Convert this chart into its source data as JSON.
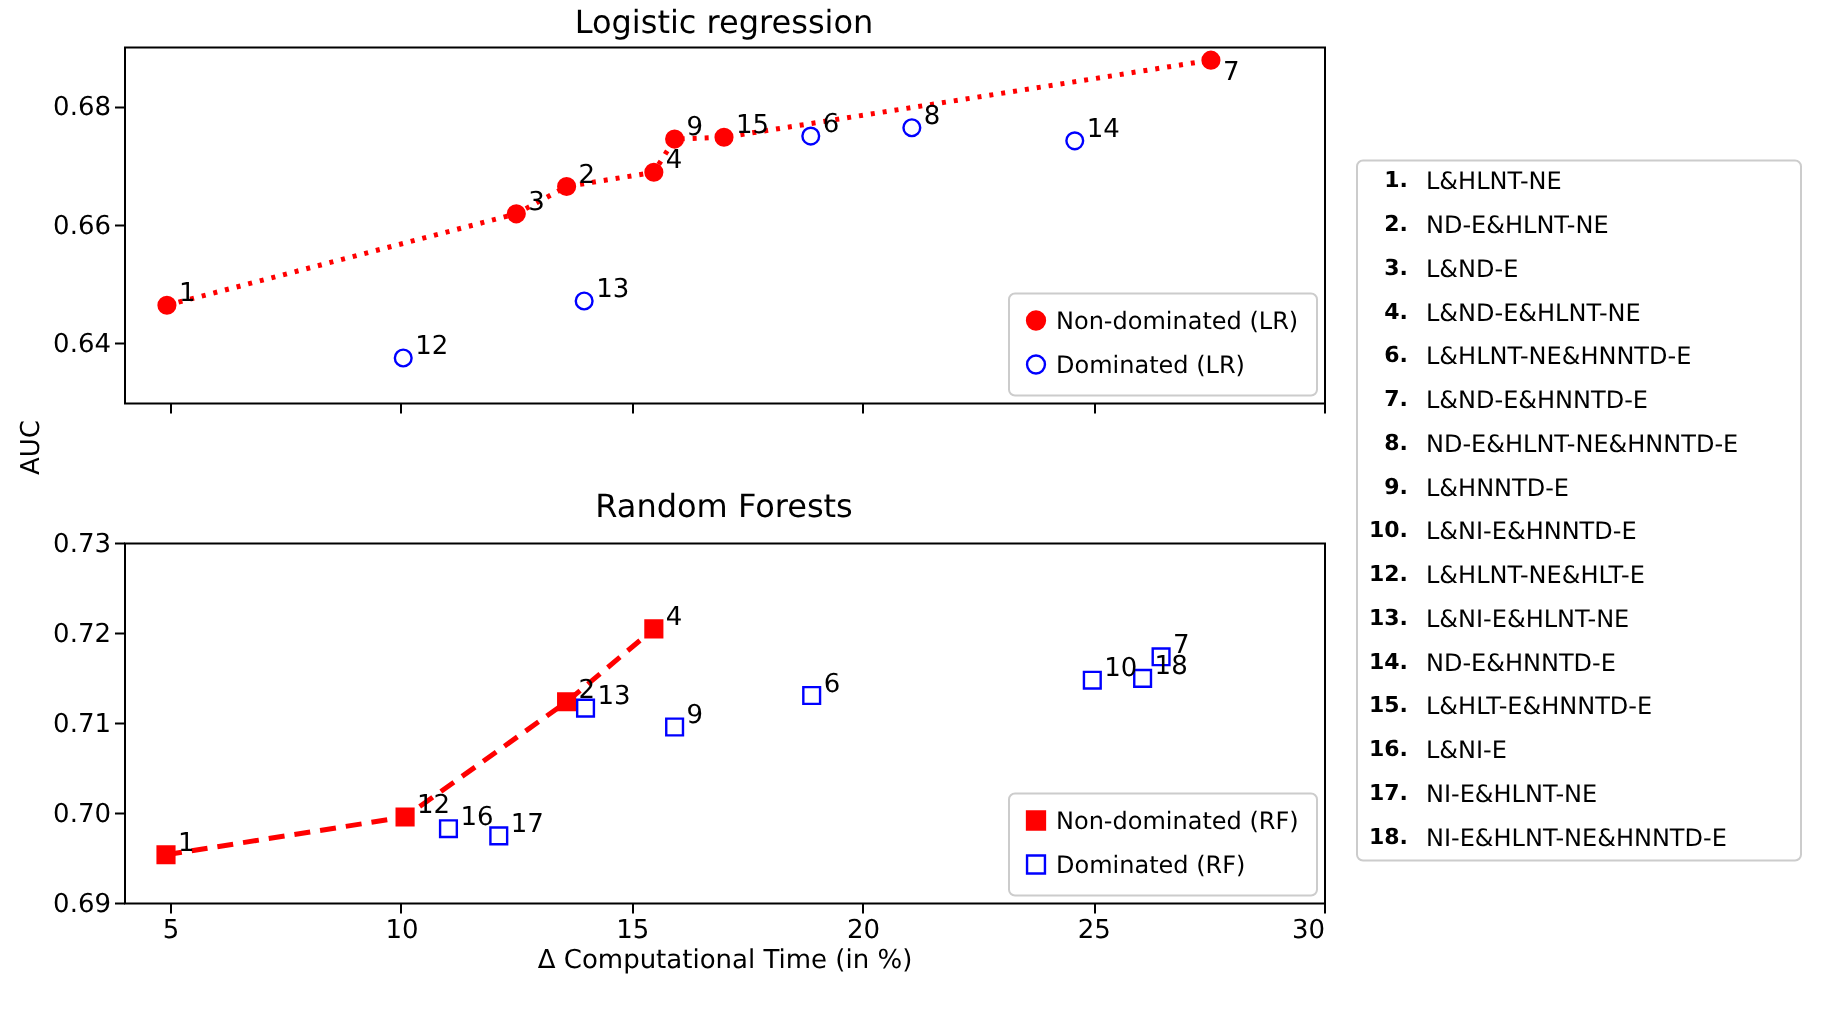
{
  "chart_data": [
    {
      "type": "scatter",
      "title": "Logistic regression",
      "ylabel": "AUC",
      "xlim": [
        4,
        30
      ],
      "xticks": [
        5,
        10,
        15,
        20,
        25,
        30
      ],
      "ylim": [
        0.63,
        0.69
      ],
      "yticks": [
        0.64,
        0.66,
        0.68
      ],
      "tick_labels": "y",
      "legend": "bottom right",
      "series": [
        {
          "name": "Non-dominated (LR)",
          "type": "line",
          "line_style": "dotted",
          "marker": "circle",
          "color": "#ff0000",
          "x": [
            4.93,
            12.5,
            13.59,
            15.48,
            15.93,
            17.0,
            27.55
          ],
          "values": [
            0.6464,
            0.6618,
            0.6664,
            0.6688,
            0.6744,
            0.6747,
            0.6877
          ]
        },
        {
          "name": "Dominated (LR)",
          "type": "scatter",
          "marker": "circle",
          "color": "#0000ff",
          "x": [
            10.05,
            13.97,
            18.88,
            21.07,
            24.6
          ],
          "values": [
            0.6375,
            0.6471,
            0.6749,
            0.6763,
            0.6741
          ]
        }
      ],
      "annotations": [
        {
          "text": "1",
          "x": 4.93,
          "y": 0.6464
        },
        {
          "text": "3",
          "x": 12.5,
          "y": 0.6618
        },
        {
          "text": "2",
          "x": 13.59,
          "y": 0.6664
        },
        {
          "text": "4",
          "x": 15.48,
          "y": 0.6688
        },
        {
          "text": "9",
          "x": 15.93,
          "y": 0.6744
        },
        {
          "text": "15",
          "x": 17.0,
          "y": 0.6747
        },
        {
          "text": "7",
          "x": 27.55,
          "y": 0.6877
        },
        {
          "text": "12",
          "x": 10.05,
          "y": 0.6375
        },
        {
          "text": "13",
          "x": 13.97,
          "y": 0.6471
        },
        {
          "text": "6",
          "x": 18.88,
          "y": 0.6749
        },
        {
          "text": "8",
          "x": 21.07,
          "y": 0.6763
        },
        {
          "text": "14",
          "x": 24.6,
          "y": 0.6741
        }
      ]
    },
    {
      "type": "scatter",
      "title": "Random Forests",
      "xlabel": "Δ Computational Time (in %)",
      "xlim": [
        4,
        30
      ],
      "xticks": [
        5,
        10,
        15,
        20,
        25,
        30
      ],
      "ylim": [
        0.69,
        0.73
      ],
      "yticks": [
        0.69,
        {
          "value": 0.7,
          "label": "0.70"
        },
        0.71,
        0.72,
        0.73
      ],
      "legend": "bottom right",
      "series": [
        {
          "name": "Non-dominated (RF)",
          "type": "line",
          "line_style": "dashed",
          "marker": "square",
          "color": "#ff0000",
          "x": [
            4.91,
            10.09,
            13.59,
            15.48
          ],
          "values": [
            0.6953,
            0.6995,
            0.7123,
            0.7204
          ]
        },
        {
          "name": "Dominated (RF)",
          "type": "scatter",
          "marker": "square",
          "color": "#0000ff",
          "x": [
            11.03,
            12.12,
            14.0,
            15.93,
            18.9,
            24.98,
            26.07,
            26.47
          ],
          "values": [
            0.6982,
            0.6974,
            0.7116,
            0.7095,
            0.713,
            0.7147,
            0.7149,
            0.7173
          ]
        }
      ],
      "annotations": [
        {
          "text": "1",
          "x": 4.91,
          "y": 0.6953
        },
        {
          "text": "12",
          "x": 10.09,
          "y": 0.6995
        },
        {
          "text": "2",
          "x": 13.59,
          "y": 0.7123
        },
        {
          "text": "4",
          "x": 15.48,
          "y": 0.7204
        },
        {
          "text": "16",
          "x": 11.03,
          "y": 0.6982
        },
        {
          "text": "17",
          "x": 12.12,
          "y": 0.6974
        },
        {
          "text": "13",
          "x": 14.0,
          "y": 0.7116
        },
        {
          "text": "9",
          "x": 15.93,
          "y": 0.7095
        },
        {
          "text": "6",
          "x": 18.9,
          "y": 0.713
        },
        {
          "text": "10",
          "x": 24.98,
          "y": 0.7147
        },
        {
          "text": "18",
          "x": 26.07,
          "y": 0.7149
        },
        {
          "text": "7",
          "x": 26.47,
          "y": 0.7173
        }
      ]
    },
    {
      "type": "other",
      "annotations": [
        "1. L&HLNT-NE",
        "2. ND-E&HLNT-NE",
        "3. L&ND-E",
        "4. L&ND-E&HLNT-NE",
        "6. L&HLNT-NE&HNNTD-E",
        "7. L&ND-E&HNNTD-E",
        "8. ND-E&HLNT-NE&HNNTD-E",
        "9. L&HNNTD-E",
        "10. L&NI-E&HNNTD-E",
        "12. L&HLNT-NE&HLT-E",
        "13. L&NI-E&HLNT-NE",
        "14. ND-E&HNNTD-E",
        "15. L&HLT-E&HNNTD-E",
        "16. L&NI-E",
        "17. NI-E&HLNT-NE",
        "18. NI-E&HLNT-NE&HNNTD-E"
      ]
    }
  ]
}
